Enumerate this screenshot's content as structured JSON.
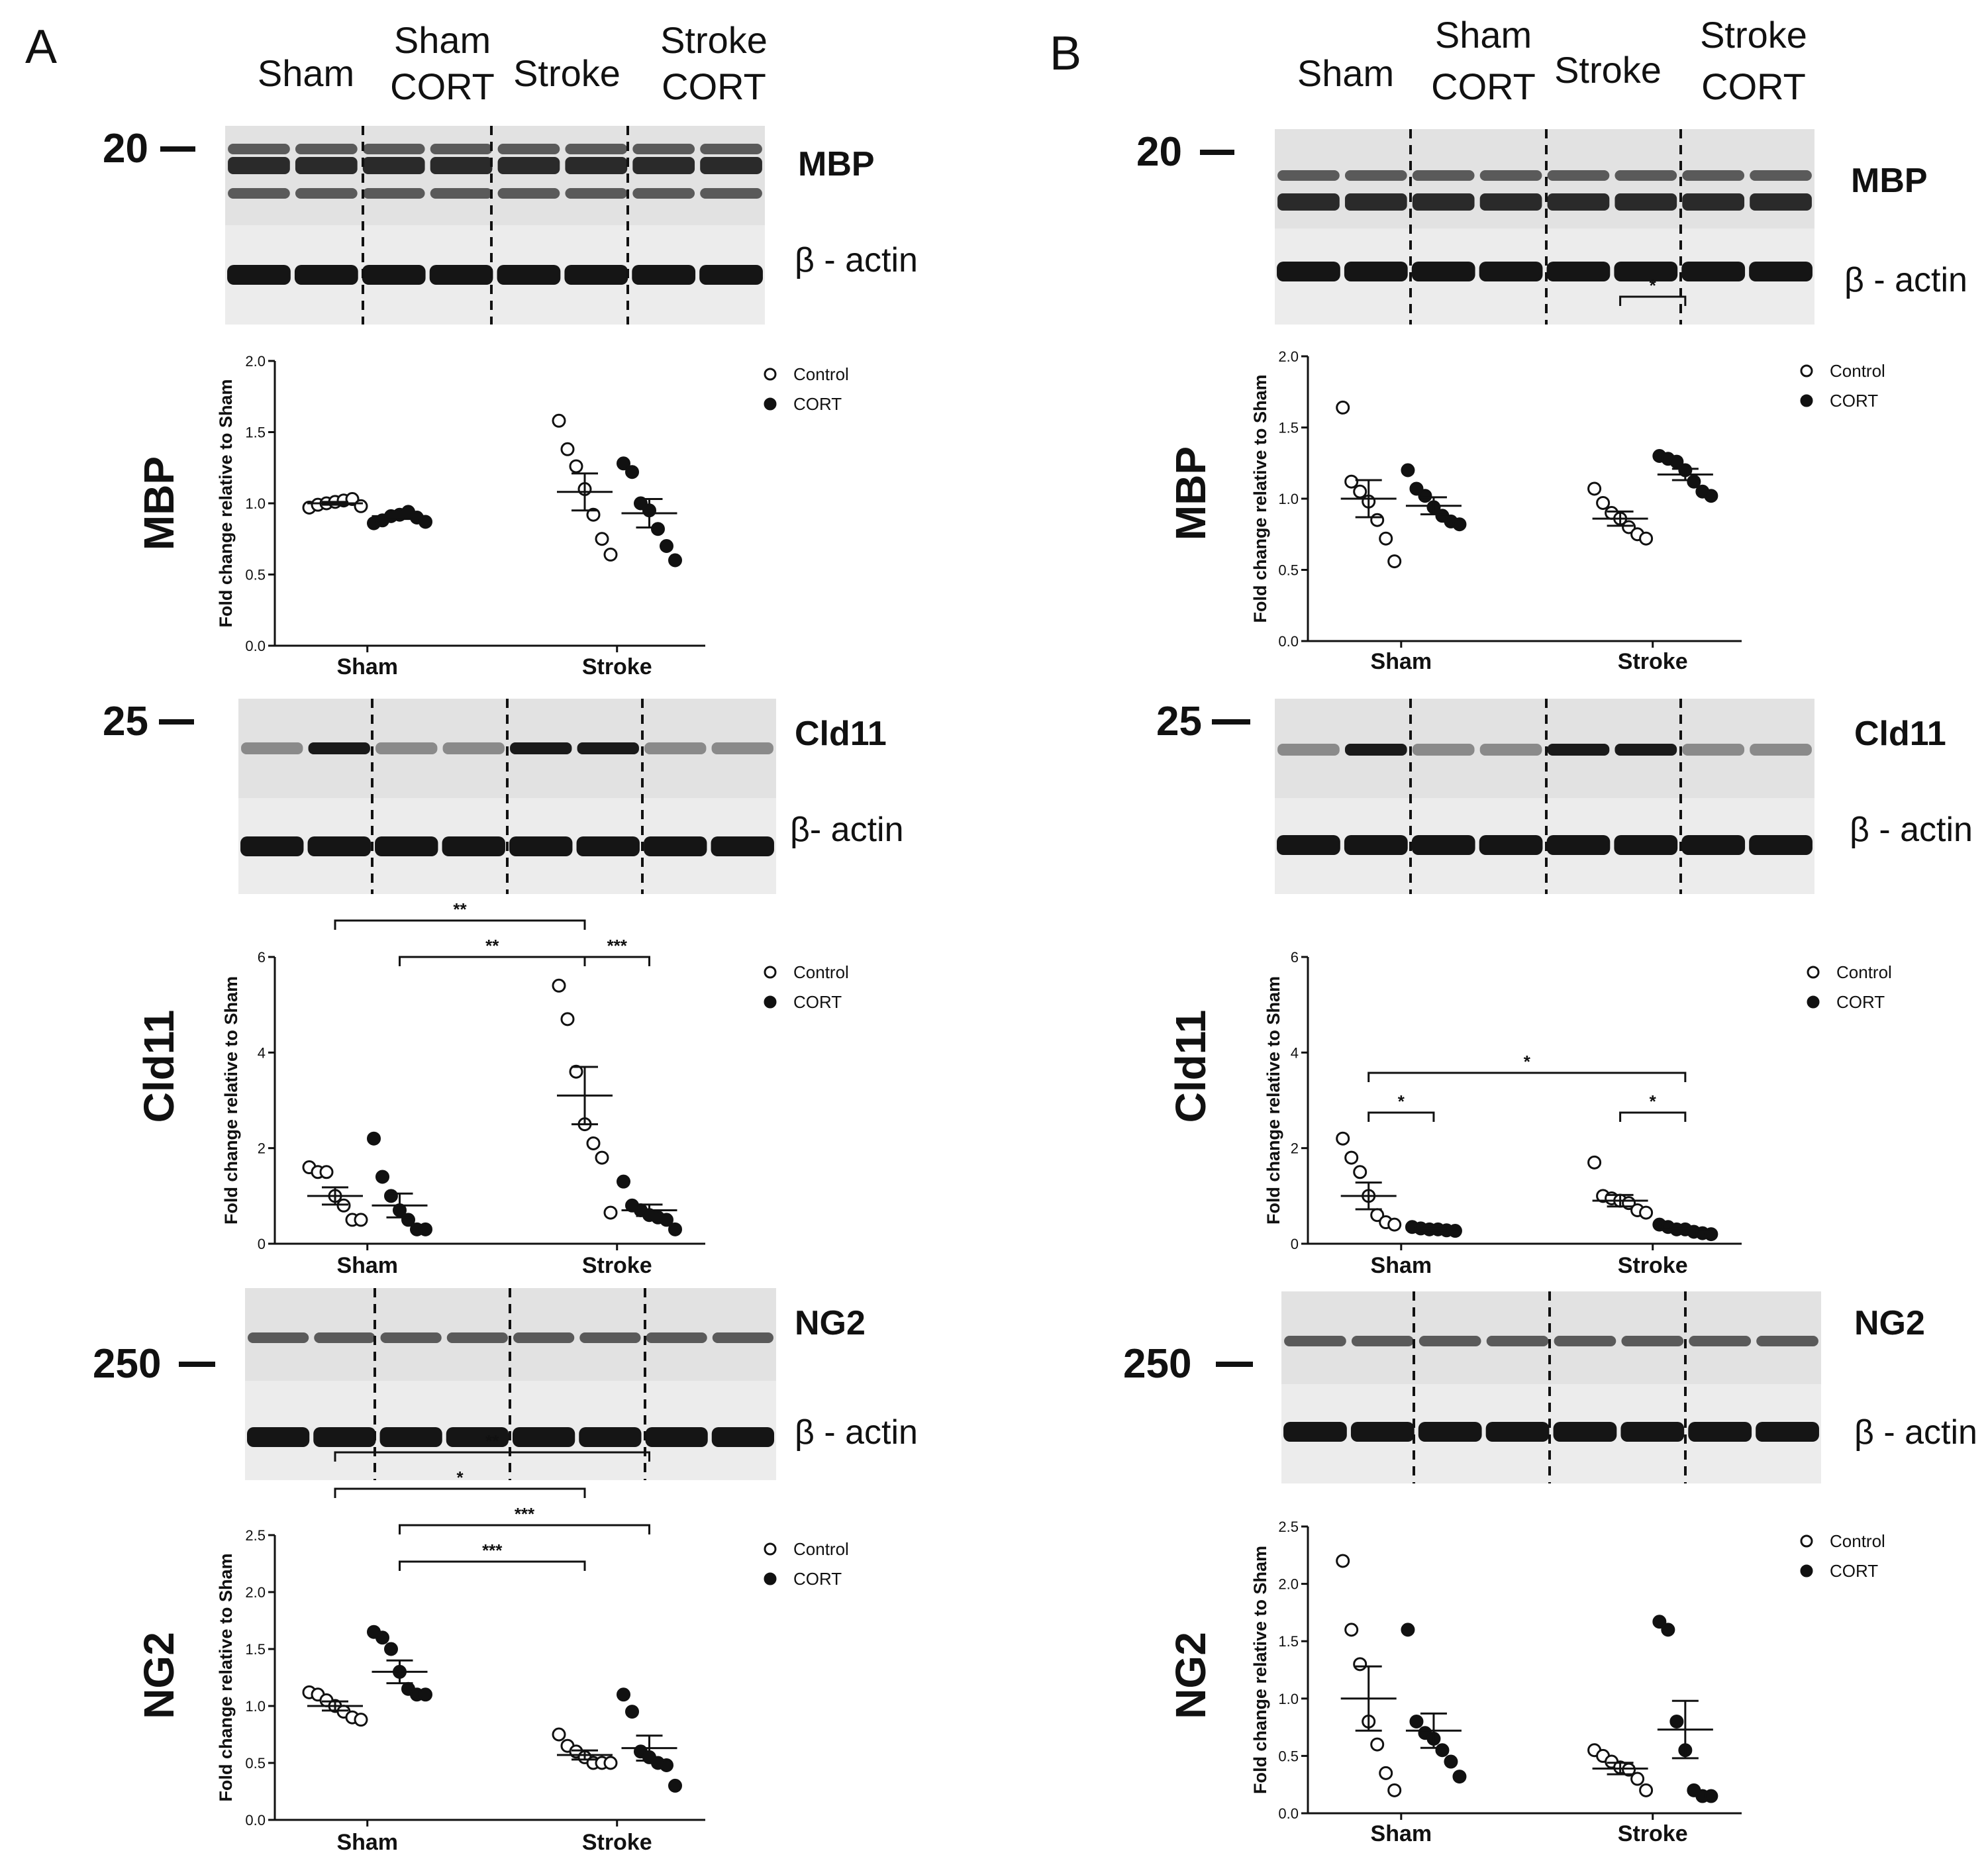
{
  "panels": [
    {
      "letter": "A",
      "columns": [
        "Sham",
        "Sham CORT",
        "Stroke",
        "Stroke CORT"
      ]
    },
    {
      "letter": "B",
      "columns": [
        "Sham",
        "Sham CORT",
        "Stroke",
        "Stroke CORT"
      ]
    }
  ],
  "blots": [
    {
      "panel": "A",
      "target": "MBP",
      "actin_label": "β - actin",
      "marker": "20"
    },
    {
      "panel": "A",
      "target": "Cld11",
      "actin_label": "β- actin",
      "marker": "25"
    },
    {
      "panel": "A",
      "target": "NG2",
      "actin_label": "β - actin",
      "marker": "250"
    },
    {
      "panel": "B",
      "target": "MBP",
      "actin_label": "β - actin",
      "marker": "20"
    },
    {
      "panel": "B",
      "target": "Cld11",
      "actin_label": "β - actin",
      "marker": "25"
    },
    {
      "panel": "B",
      "target": "NG2",
      "actin_label": "β - actin",
      "marker": "250"
    }
  ],
  "legend": {
    "control": "Control",
    "cort": "CORT"
  },
  "chart_data": [
    {
      "panel": "A",
      "row_label": "MBP",
      "type": "scatter",
      "ylabel": "Fold change relative to Sham",
      "ylim": [
        0,
        2.0
      ],
      "yticks": [
        "0.0",
        "0.5",
        "1.0",
        "1.5",
        "2.0"
      ],
      "categories": [
        "Sham",
        "Stroke"
      ],
      "series": [
        {
          "name": "Control",
          "group": "Sham",
          "values": [
            0.97,
            0.99,
            1.0,
            1.01,
            1.02,
            1.03,
            0.98
          ],
          "mean": 1.0,
          "sem": 0.01
        },
        {
          "name": "CORT",
          "group": "Sham",
          "values": [
            0.86,
            0.88,
            0.91,
            0.92,
            0.94,
            0.9,
            0.87
          ],
          "mean": 0.91,
          "sem": 0.02
        },
        {
          "name": "Control",
          "group": "Stroke",
          "values": [
            1.58,
            1.38,
            1.26,
            1.1,
            0.92,
            0.75,
            0.64
          ],
          "mean": 1.08,
          "sem": 0.13
        },
        {
          "name": "CORT",
          "group": "Stroke",
          "values": [
            1.28,
            1.22,
            1.0,
            0.95,
            0.82,
            0.7,
            0.6
          ],
          "mean": 0.93,
          "sem": 0.1
        }
      ],
      "significance": []
    },
    {
      "panel": "A",
      "row_label": "Cld11",
      "type": "scatter",
      "ylabel": "Fold change relative to Sham",
      "ylim": [
        0,
        6
      ],
      "yticks": [
        "0",
        "2",
        "4",
        "6"
      ],
      "categories": [
        "Sham",
        "Stroke"
      ],
      "series": [
        {
          "name": "Control",
          "group": "Sham",
          "values": [
            1.6,
            1.5,
            1.5,
            1.0,
            0.8,
            0.5,
            0.5
          ],
          "mean": 1.0,
          "sem": 0.18
        },
        {
          "name": "CORT",
          "group": "Sham",
          "values": [
            2.2,
            1.4,
            1.0,
            0.7,
            0.5,
            0.3,
            0.3
          ],
          "mean": 0.8,
          "sem": 0.25
        },
        {
          "name": "Control",
          "group": "Stroke",
          "values": [
            5.4,
            4.7,
            3.6,
            2.5,
            2.1,
            1.8,
            0.65
          ],
          "mean": 3.1,
          "sem": 0.6
        },
        {
          "name": "CORT",
          "group": "Stroke",
          "values": [
            1.3,
            0.8,
            0.7,
            0.6,
            0.55,
            0.5,
            0.3
          ],
          "mean": 0.7,
          "sem": 0.12
        }
      ],
      "significance": [
        {
          "from": "Sham Control",
          "to": "Stroke Control",
          "label": "**"
        },
        {
          "from": "Sham CORT",
          "to": "Stroke Control",
          "label": "**"
        },
        {
          "from": "Stroke Control",
          "to": "Stroke CORT",
          "label": "***"
        }
      ]
    },
    {
      "panel": "A",
      "row_label": "NG2",
      "type": "scatter",
      "ylabel": "Fold change relative to Sham",
      "ylim": [
        0,
        2.5
      ],
      "yticks": [
        "0.0",
        "0.5",
        "1.0",
        "1.5",
        "2.0",
        "2.5"
      ],
      "categories": [
        "Sham",
        "Stroke"
      ],
      "series": [
        {
          "name": "Control",
          "group": "Sham",
          "values": [
            1.12,
            1.1,
            1.05,
            1.0,
            0.95,
            0.9,
            0.88
          ],
          "mean": 1.0,
          "sem": 0.04
        },
        {
          "name": "CORT",
          "group": "Sham",
          "values": [
            1.65,
            1.6,
            1.5,
            1.3,
            1.15,
            1.1,
            1.1
          ],
          "mean": 1.3,
          "sem": 0.1
        },
        {
          "name": "Control",
          "group": "Stroke",
          "values": [
            0.75,
            0.65,
            0.6,
            0.55,
            0.5,
            0.5,
            0.5
          ],
          "mean": 0.57,
          "sem": 0.04
        },
        {
          "name": "CORT",
          "group": "Stroke",
          "values": [
            1.1,
            0.95,
            0.6,
            0.55,
            0.5,
            0.48,
            0.3
          ],
          "mean": 0.63,
          "sem": 0.11
        }
      ],
      "significance": [
        {
          "from": "Sham Control",
          "to": "Stroke CORT",
          "label": "**"
        },
        {
          "from": "Sham Control",
          "to": "Stroke Control",
          "label": "*"
        },
        {
          "from": "Sham CORT",
          "to": "Stroke CORT",
          "label": "***"
        },
        {
          "from": "Sham CORT",
          "to": "Stroke Control",
          "label": "***"
        }
      ]
    },
    {
      "panel": "B",
      "row_label": "MBP",
      "type": "scatter",
      "ylabel": "Fold change relative to Sham",
      "ylim": [
        0,
        2.0
      ],
      "yticks": [
        "0.0",
        "0.5",
        "1.0",
        "1.5",
        "2.0"
      ],
      "categories": [
        "Sham",
        "Stroke"
      ],
      "series": [
        {
          "name": "Control",
          "group": "Sham",
          "values": [
            1.64,
            1.12,
            1.05,
            0.98,
            0.85,
            0.72,
            0.56
          ],
          "mean": 1.0,
          "sem": 0.13
        },
        {
          "name": "CORT",
          "group": "Sham",
          "values": [
            1.2,
            1.07,
            1.02,
            0.94,
            0.88,
            0.84,
            0.82
          ],
          "mean": 0.95,
          "sem": 0.06
        },
        {
          "name": "Control",
          "group": "Stroke",
          "values": [
            1.07,
            0.97,
            0.9,
            0.86,
            0.8,
            0.75,
            0.72
          ],
          "mean": 0.86,
          "sem": 0.05
        },
        {
          "name": "CORT",
          "group": "Stroke",
          "values": [
            1.3,
            1.28,
            1.26,
            1.2,
            1.12,
            1.05,
            1.02
          ],
          "mean": 1.17,
          "sem": 0.04
        }
      ],
      "significance": [
        {
          "from": "Stroke Control",
          "to": "Stroke CORT",
          "label": "*"
        }
      ]
    },
    {
      "panel": "B",
      "row_label": "Cld11",
      "type": "scatter",
      "ylabel": "Fold change relative to Sham",
      "ylim": [
        0,
        6
      ],
      "yticks": [
        "0",
        "2",
        "4",
        "6"
      ],
      "categories": [
        "Sham",
        "Stroke"
      ],
      "series": [
        {
          "name": "Control",
          "group": "Sham",
          "values": [
            2.2,
            1.8,
            1.5,
            1.0,
            0.6,
            0.45,
            0.4
          ],
          "mean": 1.0,
          "sem": 0.28
        },
        {
          "name": "CORT",
          "group": "Sham",
          "values": [
            0.35,
            0.32,
            0.3,
            0.3,
            0.28,
            0.27
          ],
          "mean": 0.3,
          "sem": 0.02
        },
        {
          "name": "Control",
          "group": "Stroke",
          "values": [
            1.7,
            1.0,
            0.95,
            0.9,
            0.85,
            0.7,
            0.65
          ],
          "mean": 0.9,
          "sem": 0.12
        },
        {
          "name": "CORT",
          "group": "Stroke",
          "values": [
            0.4,
            0.35,
            0.3,
            0.3,
            0.25,
            0.22,
            0.2
          ],
          "mean": 0.29,
          "sem": 0.03
        }
      ],
      "significance": [
        {
          "from": "Sham Control",
          "to": "Stroke CORT",
          "label": "*"
        },
        {
          "from": "Sham Control",
          "to": "Sham CORT",
          "label": "*"
        },
        {
          "from": "Stroke Control",
          "to": "Stroke CORT",
          "label": "*"
        }
      ]
    },
    {
      "panel": "B",
      "row_label": "NG2",
      "type": "scatter",
      "ylabel": "Fold change relative to Sham",
      "ylim": [
        0,
        2.5
      ],
      "yticks": [
        "0.0",
        "0.5",
        "1.0",
        "1.5",
        "2.0",
        "2.5"
      ],
      "categories": [
        "Sham",
        "Stroke"
      ],
      "series": [
        {
          "name": "Control",
          "group": "Sham",
          "values": [
            2.2,
            1.6,
            1.3,
            0.8,
            0.6,
            0.35,
            0.2
          ],
          "mean": 1.0,
          "sem": 0.28
        },
        {
          "name": "CORT",
          "group": "Sham",
          "values": [
            1.6,
            0.8,
            0.7,
            0.65,
            0.55,
            0.45,
            0.32
          ],
          "mean": 0.72,
          "sem": 0.15
        },
        {
          "name": "Control",
          "group": "Stroke",
          "values": [
            0.55,
            0.5,
            0.45,
            0.4,
            0.38,
            0.3,
            0.2
          ],
          "mean": 0.39,
          "sem": 0.05
        },
        {
          "name": "CORT",
          "group": "Stroke",
          "values": [
            1.67,
            1.6,
            0.8,
            0.55,
            0.2,
            0.15,
            0.15
          ],
          "mean": 0.73,
          "sem": 0.25
        }
      ],
      "significance": []
    }
  ]
}
